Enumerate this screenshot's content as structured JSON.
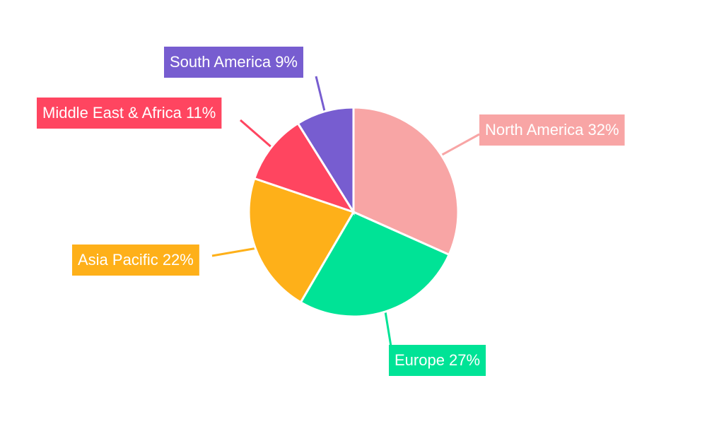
{
  "chart_data": {
    "type": "pie",
    "categories": [
      "North America",
      "Europe",
      "Asia Pacific",
      "Middle East & Africa",
      "South America"
    ],
    "values": [
      32,
      27,
      22,
      11,
      9
    ],
    "value_labels": [
      "North America 32%",
      "Europe 27%",
      "Asia Pacific 22%",
      "Middle East & Africa 11%",
      "South America 9%"
    ],
    "colors": [
      "#f8a5a5",
      "#00e396",
      "#feb019",
      "#ff4560",
      "#775dd0"
    ]
  }
}
